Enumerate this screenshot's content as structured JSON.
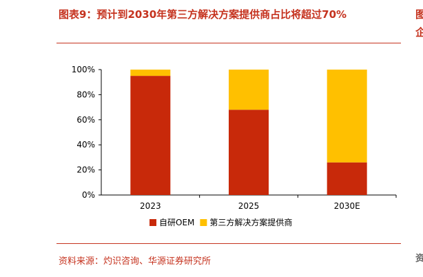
{
  "header": {
    "title": "图表9：预计到2030年第三方解决方案提供商占比将超过70%"
  },
  "footer": {
    "source": "资料来源：灼识咨询、华源证券研究所"
  },
  "edge": {
    "glyph1": "图",
    "glyph2": "企",
    "glyph3": "资"
  },
  "chart_data": {
    "type": "bar",
    "stacked": true,
    "categories": [
      "2023",
      "2025",
      "2030E"
    ],
    "series": [
      {
        "name": "自研OEM",
        "values": [
          95,
          68,
          26
        ],
        "color": "#C8290A"
      },
      {
        "name": "第三方解决方案提供商",
        "values": [
          5,
          32,
          74
        ],
        "color": "#FFC000"
      }
    ],
    "yticks": [
      "0%",
      "20%",
      "40%",
      "60%",
      "80%",
      "100%"
    ],
    "ylim": [
      0,
      100
    ],
    "grid": false,
    "legend_position": "bottom"
  }
}
